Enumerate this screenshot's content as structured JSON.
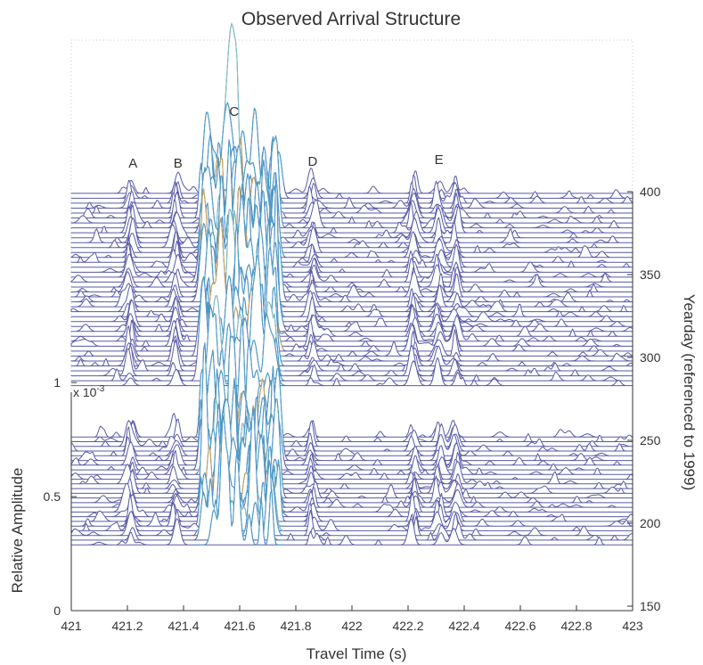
{
  "chart_data": {
    "type": "line",
    "title": "Observed Arrival Structure",
    "xlabel": "Travel Time (s)",
    "ylabel_left": "Relative Amplitude",
    "ylabel_right": "Yearday (referenced to 1999)",
    "left_axis_multiplier": "x 10",
    "left_axis_multiplier_exponent": "-3",
    "xlim": [
      421,
      423
    ],
    "x_ticks": [
      "421",
      "421.2",
      "421.4",
      "421.6",
      "421.8",
      "422",
      "422.2",
      "422.4",
      "422.6",
      "422.8",
      "423"
    ],
    "y_left_ticks": [
      "0",
      "0.5",
      "1"
    ],
    "y_left_range": [
      0,
      0.0012
    ],
    "y_right_ticks": [
      "150",
      "200",
      "250",
      "300",
      "350",
      "400"
    ],
    "y_right_range": [
      150,
      400
    ],
    "peak_labels": [
      {
        "text": "A",
        "x": 421.22
      },
      {
        "text": "B",
        "x": 421.38
      },
      {
        "text": "C",
        "x": 421.58
      },
      {
        "text": "D",
        "x": 421.86
      },
      {
        "text": "E",
        "x": 422.31
      }
    ],
    "waterfall_groups": [
      {
        "yearday_start": 187,
        "yearday_end": 252,
        "trace_count": 24
      },
      {
        "yearday_start": 283,
        "yearday_end": 399,
        "trace_count": 40
      }
    ],
    "colors": {
      "trace": "#5a5aa8",
      "trace_core_1": "#7fc4c4",
      "trace_core_2": "#4a9ec8",
      "trace_core_3": "#c8a65a",
      "axis": "#333333"
    },
    "grid": false
  }
}
